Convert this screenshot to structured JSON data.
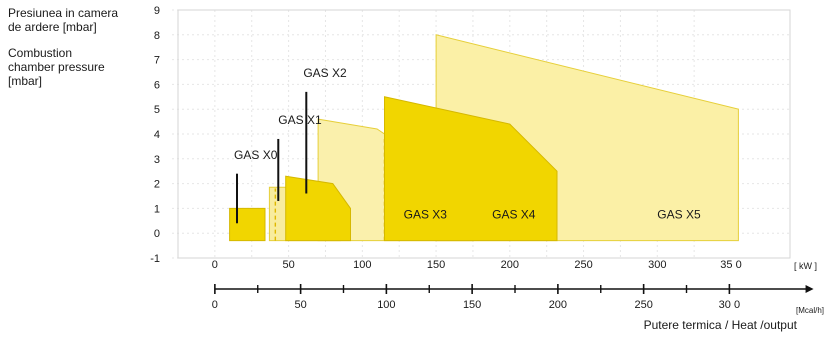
{
  "chart_data": {
    "type": "area",
    "ylabel_ro": "Presiunea in camera de ardere [mbar]",
    "ylabel_ro_lines": [
      "Presiunea in camera",
      "de ardere [mbar]"
    ],
    "ylabel_en": "Combustion chamber pressure [mbar]",
    "ylabel_en_lines": [
      "Combustion",
      "chamber pressure",
      "[mbar]"
    ],
    "xlabel": "Putere termica / Heat /output",
    "ylim": [
      -1,
      9
    ],
    "yticks": [
      "-1",
      "0",
      "1",
      "2",
      "3",
      "4",
      "5",
      "6",
      "7",
      "8",
      "9"
    ],
    "xlim_kw": [
      -25,
      390
    ],
    "kw_unit": "[ kW ]",
    "kw_ticks": [
      {
        "v": 0,
        "label": "0"
      },
      {
        "v": 50,
        "label": "50"
      },
      {
        "v": 100,
        "label": "100"
      },
      {
        "v": 150,
        "label": "150"
      },
      {
        "v": 200,
        "label": "200"
      },
      {
        "v": 250,
        "label": "250"
      },
      {
        "v": 300,
        "label": "300"
      },
      {
        "v": 350,
        "label": "35 0"
      }
    ],
    "mcal_unit": "[Mcal/h]",
    "mcal_ticks": [
      {
        "v": 0,
        "label": "0"
      },
      {
        "v": 50,
        "label": "50"
      },
      {
        "v": 100,
        "label": "100"
      },
      {
        "v": 150,
        "label": "150"
      },
      {
        "v": 200,
        "label": "200"
      },
      {
        "v": 250,
        "label": "250"
      },
      {
        "v": 300,
        "label": "30 0"
      }
    ],
    "mcal_minor": [
      25,
      75,
      125,
      175,
      225,
      275
    ],
    "mcal_arrow_to": 345,
    "grid": true,
    "series": [
      {
        "name": "GAS X5",
        "color": "#fbf0a6",
        "edge": "#e6cf3a",
        "polygon": [
          [
            150,
            -0.3
          ],
          [
            150,
            8.0
          ],
          [
            355,
            5.0
          ],
          [
            355,
            -0.3
          ]
        ],
        "label_at": [
          300,
          0.6
        ],
        "dashes": [
          [
            150,
            -0.3,
            150,
            4.0
          ]
        ]
      },
      {
        "name": "GAS X3",
        "color": "#faf0ac",
        "edge": "#e6cf3a",
        "polygon": [
          [
            70,
            -0.3
          ],
          [
            70,
            4.6
          ],
          [
            110,
            4.2
          ],
          [
            140,
            3.0
          ],
          [
            175,
            -0.3
          ]
        ],
        "label_at": [
          128,
          0.6
        ],
        "dashes": [
          [
            115,
            -0.3,
            115,
            3.8
          ]
        ]
      },
      {
        "name": "GAS X4",
        "color": "#f1d600",
        "edge": "#d5b800",
        "polygon": [
          [
            115,
            -0.3
          ],
          [
            115,
            5.5
          ],
          [
            200,
            4.4
          ],
          [
            232,
            2.5
          ],
          [
            232,
            -0.3
          ]
        ],
        "label_at": [
          188,
          0.6
        ],
        "dashes": []
      },
      {
        "name": "GAS X1",
        "color": "#f8ec9e",
        "edge": "#e6cf3a",
        "polygon": [
          [
            37,
            -0.3
          ],
          [
            37,
            1.85
          ],
          [
            78,
            1.85
          ],
          [
            85,
            1.2
          ],
          [
            85,
            -0.3
          ]
        ],
        "label_at": [
          43,
          4.4
        ],
        "dashes": [
          [
            41,
            -0.3,
            41,
            1.8
          ]
        ]
      },
      {
        "name": "GAS X2",
        "color": "#f1d600",
        "edge": "#d5b800",
        "polygon": [
          [
            48,
            -0.3
          ],
          [
            48,
            2.3
          ],
          [
            80,
            2.0
          ],
          [
            92,
            1.0
          ],
          [
            92,
            -0.3
          ]
        ],
        "label_at": [
          60,
          6.3
        ],
        "dashes": []
      },
      {
        "name": "GAS X0",
        "color": "#f1d600",
        "edge": "#d5b800",
        "polygon": [
          [
            10,
            -0.3
          ],
          [
            10,
            1.0
          ],
          [
            34,
            1.0
          ],
          [
            34,
            -0.3
          ]
        ],
        "label_at": [
          13,
          3.0
        ],
        "dashes": []
      }
    ],
    "pointers": [
      {
        "name": "GAS X0",
        "x": 15,
        "y1": 0.4,
        "y2": 2.4
      },
      {
        "name": "GAS X1",
        "x": 43,
        "y1": 1.3,
        "y2": 3.8
      },
      {
        "name": "GAS X2",
        "x": 62,
        "y1": 1.6,
        "y2": 5.7
      }
    ]
  }
}
